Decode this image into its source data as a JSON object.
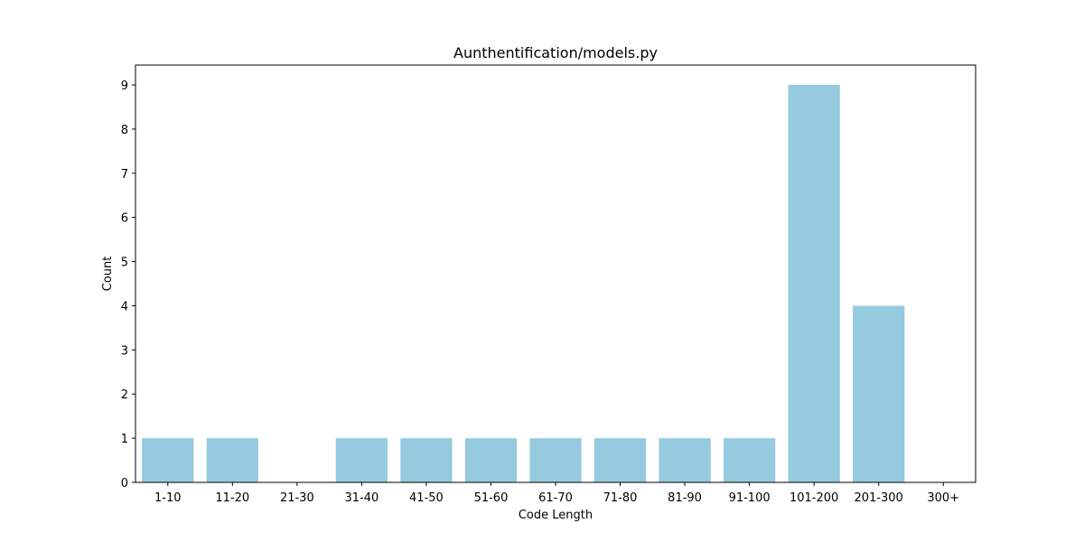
{
  "chart_data": {
    "type": "bar",
    "title": "Aunthentification/models.py",
    "xlabel": "Code Length",
    "ylabel": "Count",
    "categories": [
      "1-10",
      "11-20",
      "21-30",
      "31-40",
      "41-50",
      "51-60",
      "61-70",
      "71-80",
      "81-90",
      "91-100",
      "101-200",
      "201-300",
      "300+"
    ],
    "values": [
      1,
      1,
      0,
      1,
      1,
      1,
      1,
      1,
      1,
      1,
      9,
      4,
      0
    ],
    "ylim": [
      0,
      9.45
    ],
    "yticks": [
      0,
      1,
      2,
      3,
      4,
      5,
      6,
      7,
      8,
      9
    ],
    "bar_color": "#96cade",
    "grid": false,
    "legend": "none"
  }
}
